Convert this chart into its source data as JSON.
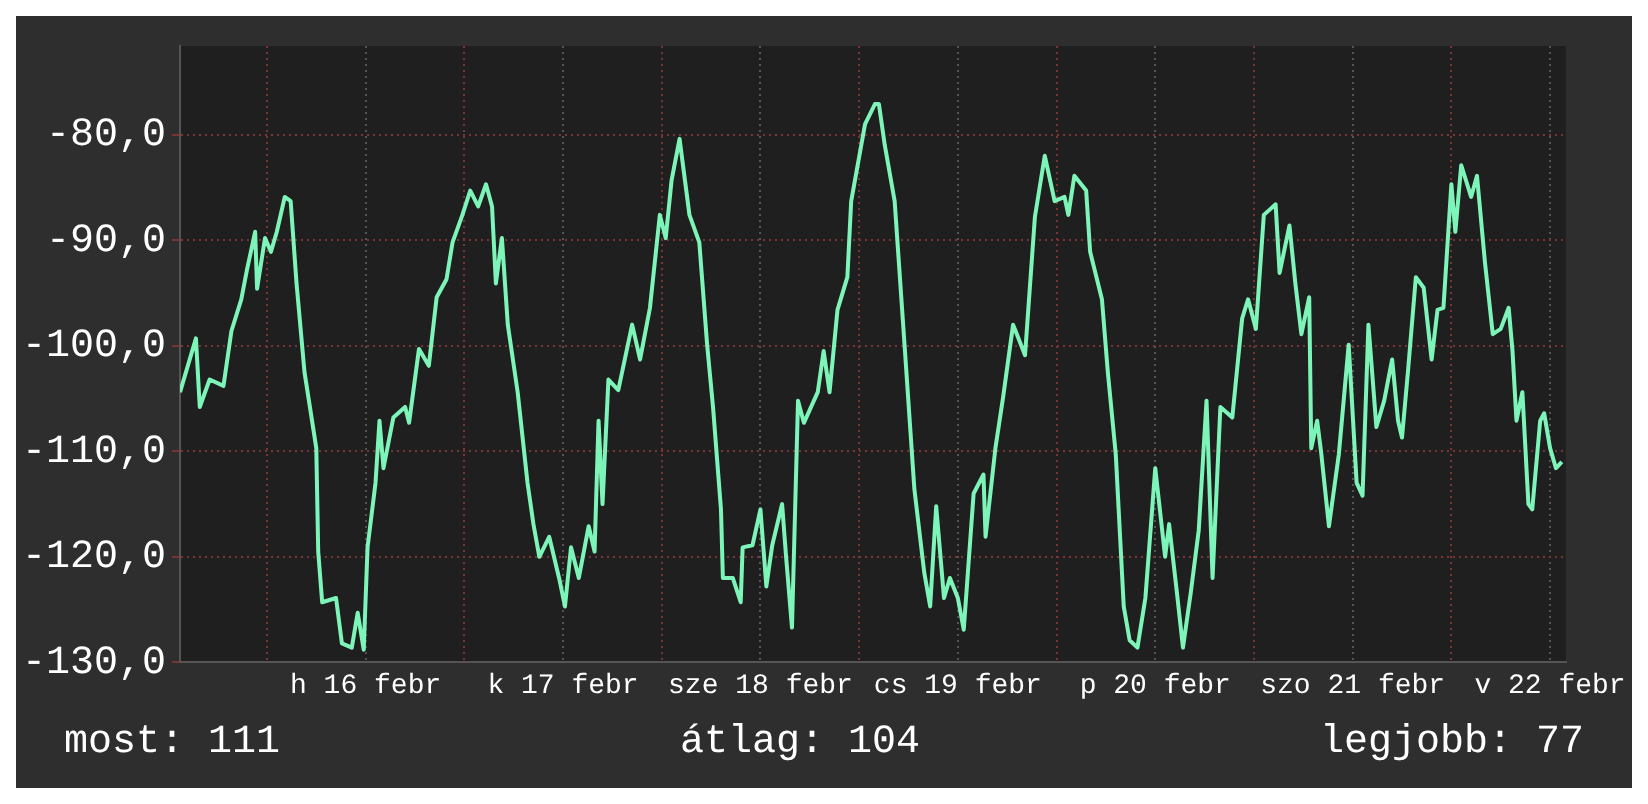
{
  "chart_data": {
    "type": "line",
    "xlim": [
      "--02-15T13:26",
      "--02-22T13:55"
    ],
    "ylim": [
      -130,
      -71.6
    ],
    "xticks": [
      {
        "value": "--02-16T00:00",
        "label": null
      },
      {
        "value": "--02-16T12:00",
        "label": "h 16 febr"
      },
      {
        "value": "--02-17T00:00",
        "label": null
      },
      {
        "value": "--02-17T12:00",
        "label": "k 17 febr"
      },
      {
        "value": "--02-18T00:00",
        "label": null
      },
      {
        "value": "--02-18T12:00",
        "label": "sze 18 febr"
      },
      {
        "value": "--02-19T00:00",
        "label": null
      },
      {
        "value": "--02-19T12:00",
        "label": "cs 19 febr"
      },
      {
        "value": "--02-20T00:00",
        "label": null
      },
      {
        "value": "--02-20T12:00",
        "label": "p 20 febr"
      },
      {
        "value": "--02-21T00:00",
        "label": null
      },
      {
        "value": "--02-21T12:00",
        "label": "szo 21 febr"
      },
      {
        "value": "--02-22T00:00",
        "label": null
      },
      {
        "value": "--02-22T12:00",
        "label": "v 22 febr"
      }
    ],
    "yticks": [
      {
        "value": -130,
        "label": "-130,0"
      },
      {
        "value": -120,
        "label": "-120,0"
      },
      {
        "value": -110,
        "label": "-110,0"
      },
      {
        "value": -100,
        "label": "-100,0"
      },
      {
        "value": -90,
        "label": "-90,0"
      },
      {
        "value": -80,
        "label": "-80,0"
      }
    ],
    "grid": true,
    "marker": "none",
    "line_style": "solid",
    "annotations": [
      "most: 111",
      "átlag: 104",
      "legjobb: 77"
    ],
    "series": [
      {
        "color": "#7df5b8",
        "x": [
          "--02-15T13:26",
          "--02-15T15:22",
          "--02-15T15:50",
          "--02-15T17:02",
          "--02-15T18:43",
          "--02-15T19:41",
          "--02-15T20:53",
          "--02-15T21:36",
          "--02-15T22:34",
          "--02-15T22:48",
          "--02-15T23:46",
          "--02-16T00:29",
          "--02-16T01:12",
          "--02-16T02:10",
          "--02-16T02:53",
          "--02-16T03:36",
          "--02-16T04:34",
          "--02-16T06:00",
          "--02-16T06:14",
          "--02-16T06:43",
          "--02-16T08:24",
          "--02-16T09:07",
          "--02-16T10:19",
          "--02-16T11:02",
          "--02-16T11:46",
          "--02-16T12:14",
          "--02-16T13:12",
          "--02-16T13:41",
          "--02-16T14:10",
          "--02-16T15:22",
          "--02-16T16:48",
          "--02-16T17:17",
          "--02-16T18:29",
          "--02-16T19:41",
          "--02-16T20:38",
          "--02-16T21:50",
          "--02-16T22:34",
          "--02-16T23:46",
          "--02-17T00:43",
          "--02-17T01:41",
          "--02-17T02:38",
          "--02-17T03:22",
          "--02-17T03:50",
          "--02-17T04:34",
          "--02-17T05:17",
          "--02-17T06:29",
          "--02-17T07:41",
          "--02-17T08:24",
          "--02-17T09:07",
          "--02-17T10:19",
          "--02-17T11:31",
          "--02-17T12:14",
          "--02-17T12:58",
          "--02-17T13:55",
          "--02-17T15:07",
          "--02-17T15:50",
          "--02-17T16:19",
          "--02-17T16:48",
          "--02-17T17:31",
          "--02-17T18:43",
          "--02-17T20:24",
          "--02-17T21:22",
          "--02-17T22:34",
          "--02-17T23:46",
          "--02-18T00:29",
          "--02-18T01:12",
          "--02-18T02:10",
          "--02-18T03:22",
          "--02-18T04:34",
          "--02-18T05:31",
          "--02-18T06:14",
          "--02-18T07:12",
          "--02-18T07:26",
          "--02-18T08:38",
          "--02-18T09:36",
          "--02-18T09:50",
          "--02-18T11:02",
          "--02-18T12:00",
          "--02-18T12:43",
          "--02-18T13:26",
          "--02-18T14:38",
          "--02-18T15:07",
          "--02-18T15:50",
          "--02-18T16:34",
          "--02-18T17:17",
          "--02-18T18:58",
          "--02-18T19:41",
          "--02-18T20:24",
          "--02-18T21:22",
          "--02-18T22:34",
          "--02-18T23:02",
          "--02-19T00:43",
          "--02-19T01:55",
          "--02-19T02:24",
          "--02-19T03:07",
          "--02-19T04:19",
          "--02-19T05:31",
          "--02-19T06:43",
          "--02-19T07:55",
          "--02-19T08:38",
          "--02-19T09:22",
          "--02-19T10:19",
          "--02-19T11:02",
          "--02-19T12:00",
          "--02-19T12:43",
          "--02-19T13:55",
          "--02-19T15:07",
          "--02-19T15:22",
          "--02-19T16:34",
          "--02-19T17:31",
          "--02-19T18:43",
          "--02-19T20:10",
          "--02-19T21:22",
          "--02-19T22:34",
          "--02-19T23:46",
          "--02-20T00:58",
          "--02-20T01:26",
          "--02-20T02:10",
          "--02-20T03:36",
          "--02-20T04:05",
          "--02-20T05:31",
          "--02-20T06:14",
          "--02-20T07:12",
          "--02-20T08:10",
          "--02-20T08:53",
          "--02-20T09:50",
          "--02-20T10:48",
          "--02-20T12:00",
          "--02-20T13:12",
          "--02-20T13:41",
          "--02-20T14:38",
          "--02-20T15:22",
          "--02-20T16:19",
          "--02-20T17:17",
          "--02-20T18:14",
          "--02-20T18:58",
          "--02-20T19:55",
          "--02-20T21:22",
          "--02-20T22:34",
          "--02-20T23:17",
          "--02-21T00:14",
          "--02-21T01:12",
          "--02-21T02:38",
          "--02-21T03:07",
          "--02-21T04:19",
          "--02-21T05:02",
          "--02-21T05:46",
          "--02-21T06:43",
          "--02-21T06:58",
          "--02-21T07:41",
          "--02-21T08:10",
          "--02-21T09:07",
          "--02-21T10:19",
          "--02-21T11:31",
          "--02-21T12:29",
          "--02-21T13:12",
          "--02-21T13:55",
          "--02-21T14:53",
          "--02-21T15:50",
          "--02-21T16:48",
          "--02-21T17:31",
          "--02-21T18:00",
          "--02-21T18:43",
          "--02-21T19:41",
          "--02-21T20:38",
          "--02-21T21:36",
          "--02-21T22:19",
          "--02-21T23:02",
          "--02-22T00:00",
          "--02-22T00:29",
          "--02-22T01:12",
          "--02-22T02:24",
          "--02-22T03:07",
          "--02-22T04:05",
          "--02-22T05:02",
          "--02-22T06:00",
          "--02-22T06:58",
          "--02-22T07:26",
          "--02-22T07:55",
          "--02-22T08:38",
          "--02-22T09:22",
          "--02-22T09:50",
          "--02-22T10:48",
          "--02-22T11:17",
          "--02-22T12:00",
          "--02-22T12:43",
          "--02-22T13:26"
        ],
        "values": [
          -104.4,
          -99.3,
          -105.8,
          -103.2,
          -103.8,
          -98.6,
          -95.6,
          -92.7,
          -89.2,
          -94.6,
          -89.8,
          -91.1,
          -89.2,
          -85.9,
          -86.3,
          -94.1,
          -102.5,
          -109.7,
          -119.5,
          -124.3,
          -123.9,
          -128.2,
          -128.6,
          -125.3,
          -128.8,
          -119.1,
          -113.0,
          -107.1,
          -111.6,
          -106.8,
          -105.8,
          -107.3,
          -100.3,
          -101.9,
          -95.4,
          -93.7,
          -90.2,
          -87.6,
          -85.3,
          -86.8,
          -84.7,
          -86.8,
          -94.1,
          -89.8,
          -98.0,
          -104.4,
          -113.0,
          -116.9,
          -120.0,
          -118.1,
          -122.0,
          -124.7,
          -119.1,
          -122.0,
          -117.1,
          -119.5,
          -107.1,
          -115.0,
          -103.2,
          -104.2,
          -98.0,
          -101.3,
          -96.4,
          -87.6,
          -89.8,
          -84.3,
          -80.4,
          -87.6,
          -90.2,
          -99.9,
          -105.8,
          -115.5,
          -122.0,
          -122.0,
          -124.3,
          -119.1,
          -118.9,
          -115.5,
          -122.8,
          -118.9,
          -115.0,
          -120.0,
          -126.7,
          -105.2,
          -107.3,
          -104.4,
          -100.5,
          -104.4,
          -96.6,
          -93.5,
          -86.3,
          -79.0,
          -77.1,
          -77.1,
          -81.0,
          -86.3,
          -99.9,
          -113.6,
          -121.5,
          -124.7,
          -115.2,
          -123.9,
          -122.0,
          -123.9,
          -126.9,
          -114.0,
          -112.2,
          -118.1,
          -109.7,
          -104.8,
          -98.0,
          -100.9,
          -87.8,
          -82.0,
          -86.3,
          -85.9,
          -87.6,
          -83.9,
          -85.3,
          -91.1,
          -95.6,
          -102.5,
          -110.3,
          -124.7,
          -127.9,
          -128.6,
          -123.9,
          -111.6,
          -120.0,
          -116.9,
          -123.4,
          -128.6,
          -123.4,
          -117.5,
          -105.2,
          -122.0,
          -105.8,
          -106.8,
          -97.4,
          -95.6,
          -98.4,
          -87.6,
          -86.6,
          -93.1,
          -88.6,
          -94.1,
          -98.9,
          -95.4,
          -109.7,
          -107.1,
          -110.1,
          -117.1,
          -110.3,
          -99.9,
          -113.0,
          -114.2,
          -98.0,
          -107.7,
          -105.2,
          -101.3,
          -107.1,
          -108.7,
          -102.5,
          -93.5,
          -94.5,
          -101.3,
          -96.6,
          -96.4,
          -84.7,
          -89.2,
          -82.9,
          -85.9,
          -83.9,
          -92.1,
          -98.9,
          -98.4,
          -96.4,
          -100.5,
          -107.1,
          -104.4,
          -115.0,
          -115.5,
          -107.1,
          -106.4,
          -109.7,
          -111.6,
          -111.0
        ]
      }
    ]
  }
}
